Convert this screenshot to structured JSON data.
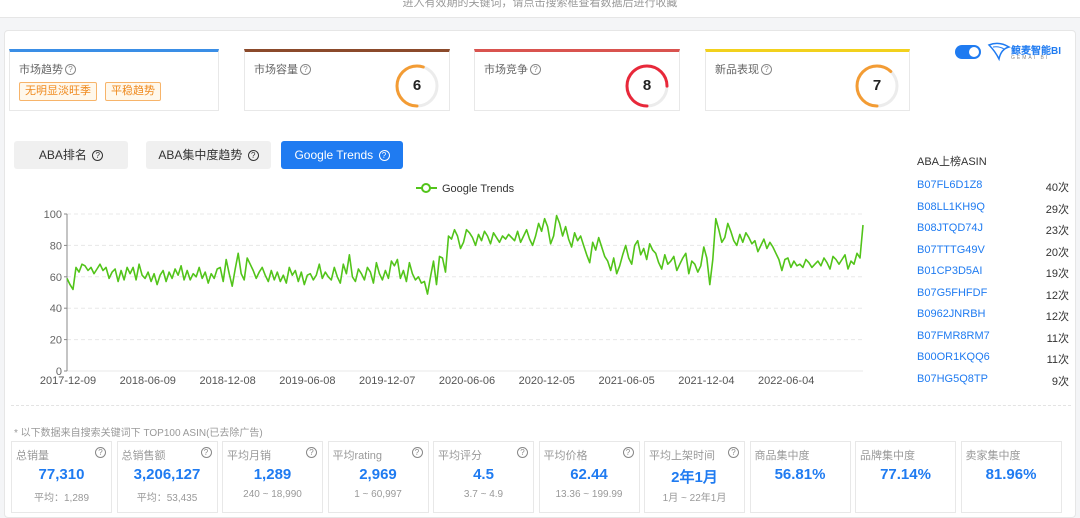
{
  "notice": "进入有效期的关键词，请点击搜索框查看数据后进行收藏",
  "metrics": [
    {
      "title": "市场趋势",
      "color": "#3a8ee6",
      "tags": [
        "无明显淡旺季",
        "平稳趋势"
      ]
    },
    {
      "title": "市场容量",
      "color": "#8b4a2b",
      "value": "6",
      "gauge_color": "#f39c34",
      "level": 0.55
    },
    {
      "title": "市场竞争",
      "color": "#d9534f",
      "value": "8",
      "gauge_color": "#e8283a",
      "level": 0.75
    },
    {
      "title": "新品表现",
      "color": "#f2d11d",
      "value": "7",
      "gauge_color": "#f39c34",
      "level": 0.62
    }
  ],
  "logo": {
    "name": "鲸麦智能",
    "suffix": "BI",
    "sub": "GEMAI BI",
    "toggle_on": true
  },
  "tabs": [
    {
      "label": "ABA排名",
      "active": false
    },
    {
      "label": "ABA集中度趋势",
      "active": false
    },
    {
      "label": "Google Trends",
      "active": true
    }
  ],
  "chart_data": {
    "type": "line",
    "legend": "Google Trends",
    "series": [
      {
        "name": "Google Trends",
        "color": "#52c41a"
      }
    ],
    "ylim": [
      0,
      100
    ],
    "yticks": [
      0,
      20,
      40,
      60,
      80,
      100
    ],
    "xtick_labels": [
      "2017-12-09",
      "2018-06-09",
      "2018-12-08",
      "2019-06-08",
      "2019-12-07",
      "2020-06-06",
      "2020-12-05",
      "2021-06-05",
      "2021-12-04",
      "2022-06-04"
    ],
    "x_start": "2017-12-09",
    "x_step": "weekly",
    "values": [
      59,
      55,
      52,
      66,
      63,
      68,
      67,
      64,
      66,
      62,
      65,
      68,
      64,
      66,
      59,
      63,
      65,
      57,
      64,
      58,
      66,
      62,
      66,
      58,
      68,
      61,
      59,
      63,
      57,
      62,
      55,
      61,
      64,
      57,
      63,
      59,
      65,
      61,
      67,
      58,
      64,
      58,
      62,
      60,
      66,
      59,
      63,
      56,
      62,
      59,
      65,
      66,
      57,
      71,
      62,
      54,
      65,
      75,
      62,
      58,
      72,
      68,
      64,
      59,
      63,
      66,
      61,
      57,
      64,
      58,
      63,
      57,
      61,
      56,
      66,
      61,
      64,
      57,
      63,
      55,
      61,
      62,
      58,
      61,
      68,
      59,
      63,
      60,
      58,
      66,
      60,
      56,
      68,
      62,
      74,
      60,
      57,
      65,
      62,
      58,
      66,
      63,
      56,
      69,
      62,
      58,
      64,
      59,
      70,
      67,
      71,
      59,
      64,
      57,
      69,
      62,
      58,
      60,
      56,
      57,
      49,
      60,
      70,
      55,
      73,
      72,
      63,
      86,
      84,
      90,
      86,
      78,
      82,
      90,
      88,
      85,
      80,
      87,
      83,
      89,
      86,
      81,
      88,
      85,
      82,
      86,
      84,
      87,
      85,
      83,
      89,
      82,
      86,
      90,
      84,
      80,
      86,
      94,
      89,
      97,
      92,
      81,
      86,
      99,
      94,
      86,
      92,
      84,
      79,
      88,
      83,
      86,
      80,
      74,
      69,
      82,
      77,
      85,
      79,
      73,
      70,
      64,
      72,
      62,
      67,
      74,
      80,
      72,
      68,
      80,
      83,
      74,
      78,
      71,
      81,
      77,
      75,
      69,
      65,
      74,
      68,
      70,
      73,
      64,
      68,
      72,
      75,
      62,
      70,
      68,
      63,
      67,
      79,
      72,
      55,
      71,
      97,
      90,
      82,
      85,
      94,
      89,
      83,
      80,
      87,
      82,
      88,
      85,
      81,
      83,
      76,
      80,
      84,
      78,
      82,
      79,
      75,
      71,
      64,
      71,
      72,
      66,
      70,
      67,
      68,
      66,
      71,
      69,
      66,
      68,
      70,
      67,
      72,
      69,
      65,
      73,
      71,
      68,
      71,
      74,
      65,
      70,
      68,
      75,
      72,
      93
    ]
  },
  "asin_list": {
    "title": "ABA上榜ASIN",
    "items": [
      {
        "asin": "B07FL6D1Z8",
        "count": "40次"
      },
      {
        "asin": "B08LL1KH9Q",
        "count": "29次"
      },
      {
        "asin": "B08JTQD74J",
        "count": "23次"
      },
      {
        "asin": "B07TTTG49V",
        "count": "20次"
      },
      {
        "asin": "B01CP3D5AI",
        "count": "19次"
      },
      {
        "asin": "B07G5FHFDF",
        "count": "12次"
      },
      {
        "asin": "B0962JNRBH",
        "count": "12次"
      },
      {
        "asin": "B07FMR8RM7",
        "count": "11次"
      },
      {
        "asin": "B00OR1KQQ6",
        "count": "11次"
      },
      {
        "asin": "B07HG5Q8TP",
        "count": "9次"
      }
    ]
  },
  "footnote": "* 以下数据来自搜索关键词下 TOP100 ASIN(已去除广告)",
  "stats": [
    {
      "label": "总销量",
      "value": "77,310",
      "sub": "平均：1,289"
    },
    {
      "label": "总销售额",
      "value": "3,206,127",
      "sub": "平均：53,435"
    },
    {
      "label": "平均月销",
      "value": "1,289",
      "sub": "240 ~ 18,990"
    },
    {
      "label": "平均rating",
      "value": "2,969",
      "sub": "1 ~ 60,997"
    },
    {
      "label": "平均评分",
      "value": "4.5",
      "sub": "3.7 ~ 4.9"
    },
    {
      "label": "平均价格",
      "value": "62.44",
      "sub": "13.36 ~ 199.99"
    },
    {
      "label": "平均上架时间",
      "value": "2年1月",
      "sub": "1月 ~ 22年1月"
    },
    {
      "label": "商品集中度",
      "value": "56.81%",
      "sub": ""
    },
    {
      "label": "品牌集中度",
      "value": "77.14%",
      "sub": ""
    },
    {
      "label": "卖家集中度",
      "value": "81.96%",
      "sub": ""
    }
  ]
}
